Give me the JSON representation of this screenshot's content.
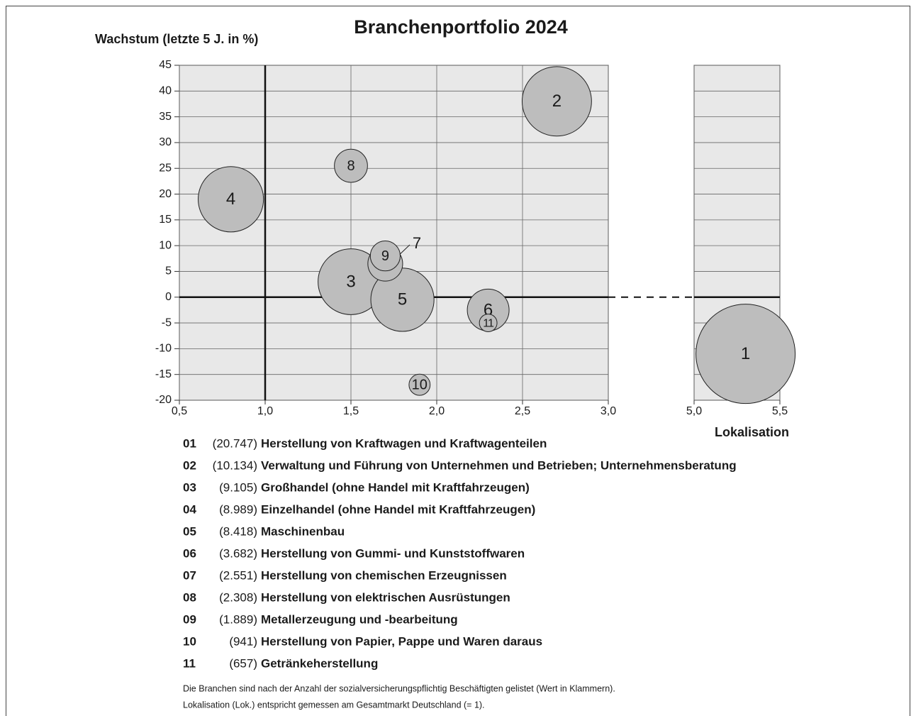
{
  "chart_data": {
    "type": "bubble",
    "title": "Branchenportfolio 2024",
    "y_label": "Wachstum (letzte 5 J. in %)",
    "x_label": "Lokalisation",
    "xlim": [
      0.5,
      3.0
    ],
    "xticks": [
      {
        "value": 0.5,
        "label": "0,5"
      },
      {
        "value": 1.0,
        "label": "1,0"
      },
      {
        "value": 1.5,
        "label": "1,5"
      },
      {
        "value": 2.0,
        "label": "2,0"
      },
      {
        "value": 2.5,
        "label": "2,5"
      },
      {
        "value": 3.0,
        "label": "3,0"
      }
    ],
    "x2lim": [
      5.0,
      5.5
    ],
    "x2ticks": [
      {
        "value": 5.0,
        "label": "5,0"
      },
      {
        "value": 5.5,
        "label": "5,5"
      }
    ],
    "ylim": [
      -20,
      45
    ],
    "yticks": [
      -20,
      -15,
      -10,
      -5,
      0,
      5,
      10,
      15,
      20,
      25,
      30,
      35,
      40,
      45
    ],
    "reference_lines": {
      "x": 1,
      "y": 0
    },
    "grid": true,
    "color": "#bdbdbd",
    "points": [
      {
        "label": "1",
        "code": "01",
        "name": "Herstellung von Kraftwagen und Kraftwagenteilen",
        "x": 5.3,
        "y": -11,
        "size": 20747,
        "size_label": "(20.747)"
      },
      {
        "label": "2",
        "code": "02",
        "name": "Verwaltung und Führung von Unternehmen und Betrieben; Unternehmensberatung",
        "x": 2.7,
        "y": 38,
        "size": 10134,
        "size_label": "(10.134)"
      },
      {
        "label": "3",
        "code": "03",
        "name": "Großhandel (ohne Handel mit Kraftfahrzeugen)",
        "x": 1.5,
        "y": 3,
        "size": 9105,
        "size_label": "(9.105)"
      },
      {
        "label": "4",
        "code": "04",
        "name": "Einzelhandel (ohne Handel mit Kraftfahrzeugen)",
        "x": 0.8,
        "y": 19,
        "size": 8989,
        "size_label": "(8.989)"
      },
      {
        "label": "5",
        "code": "05",
        "name": "Maschinenbau",
        "x": 1.8,
        "y": -0.5,
        "size": 8418,
        "size_label": "(8.418)"
      },
      {
        "label": "6",
        "code": "06",
        "name": "Herstellung von Gummi- und Kunststoffwaren",
        "x": 2.3,
        "y": -2.5,
        "size": 3682,
        "size_label": "(3.682)"
      },
      {
        "label": "7",
        "code": "07",
        "name": "Herstellung von chemischen Erzeugnissen",
        "x": 1.7,
        "y": 6.5,
        "size": 2551,
        "size_label": "(2.551)"
      },
      {
        "label": "8",
        "code": "08",
        "name": "Herstellung von elektrischen Ausrüstungen",
        "x": 1.5,
        "y": 25.5,
        "size": 2308,
        "size_label": "(2.308)"
      },
      {
        "label": "9",
        "code": "09",
        "name": "Metallerzeugung und -bearbeitung",
        "x": 1.7,
        "y": 8,
        "size": 1889,
        "size_label": "(1.889)"
      },
      {
        "label": "10",
        "code": "10",
        "name": "Herstellung von Papier, Pappe und Waren daraus",
        "x": 1.9,
        "y": -17,
        "size": 941,
        "size_label": "(941)"
      },
      {
        "label": "11",
        "code": "11",
        "name": "Getränkeherstellung",
        "x": 2.3,
        "y": -5,
        "size": 657,
        "size_label": "(657)"
      }
    ],
    "notes": [
      "Die Branchen sind nach der Anzahl der sozialversicherungspflichtig Beschäftigten gelistet (Wert in Klammern).",
      "Lokalisation (Lok.) entspricht gemessen am Gesamtmarkt Deutschland (= 1)."
    ]
  }
}
